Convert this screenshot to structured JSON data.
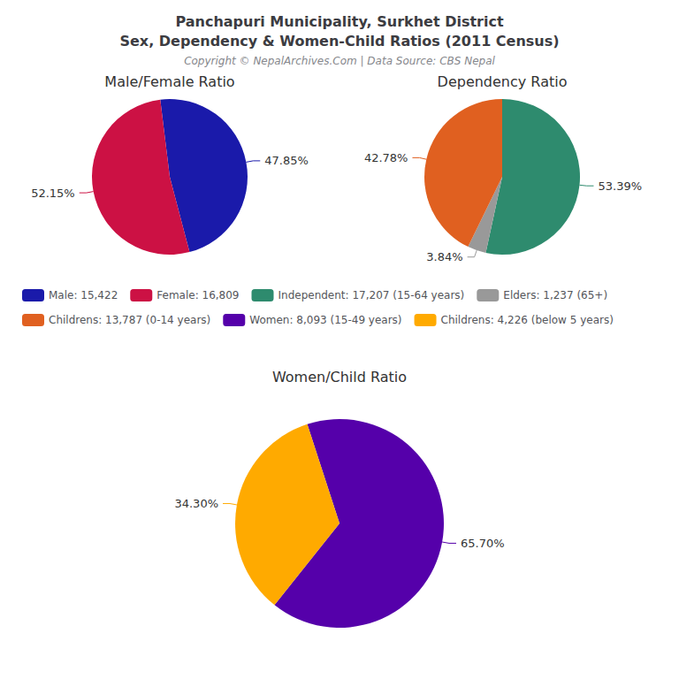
{
  "title": "Panchapuri Municipality, Surkhet District\nSex, Dependency & Women-Child Ratios (2011 Census)",
  "subtitle": "Copyright © NepalArchives.Com | Data Source: CBS Nepal",
  "chart_data": [
    {
      "type": "pie",
      "title": "Male/Female Ratio",
      "categories": [
        "Male: 15,422",
        "Female: 16,809"
      ],
      "values": [
        47.85,
        52.15
      ],
      "value_labels": [
        "47.85%",
        "52.15%"
      ],
      "colors": [
        "#1a1aaa",
        "#cc1144"
      ],
      "data_labels": true
    },
    {
      "type": "pie",
      "title": "Dependency Ratio",
      "categories": [
        "Independent: 17,207 (15-64 years)",
        "Elders: 1,237 (65+)",
        "Childrens: 13,787 (0-14 years)"
      ],
      "values": [
        53.39,
        3.84,
        42.78
      ],
      "value_labels": [
        "53.39%",
        "3.84%",
        "42.78%"
      ],
      "colors": [
        "#2e8b6e",
        "#999999",
        "#e06020"
      ],
      "data_labels": true
    },
    {
      "type": "pie",
      "title": "Women/Child Ratio",
      "categories": [
        "Women: 8,093 (15-49 years)",
        "Childrens: 4,226 (below 5 years)"
      ],
      "values": [
        65.7,
        34.3
      ],
      "value_labels": [
        "65.70%",
        "34.30%"
      ],
      "colors": [
        "#5500aa",
        "#ffaa00"
      ],
      "data_labels": true
    }
  ]
}
